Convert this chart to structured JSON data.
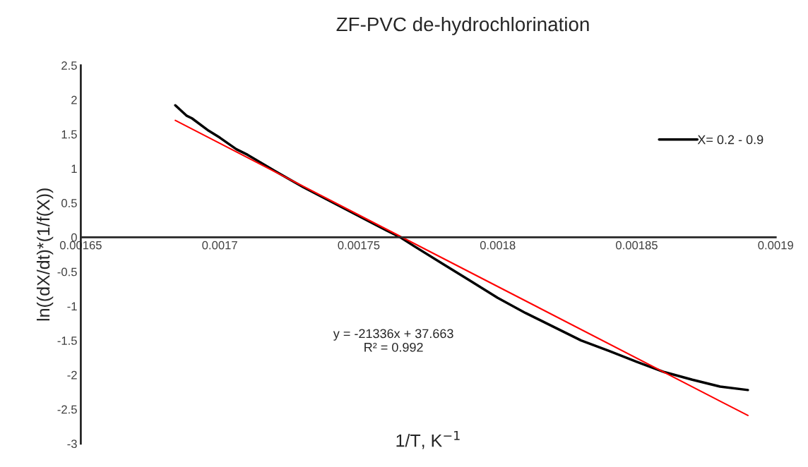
{
  "chart_data": {
    "type": "line",
    "title": "ZF-PVC de-hydrochlorination",
    "xlabel": "1/T, K$^{−1}$",
    "ylabel": "ln((dX/dt)*(1/f(X))",
    "series": [
      {
        "name": "X= 0.2 - 0.9",
        "color": "#000000",
        "x": [
          0.001684,
          0.001688,
          0.00169,
          0.001696,
          0.0017,
          0.001706,
          0.00171,
          0.00172,
          0.00173,
          0.00174,
          0.00175,
          0.00176,
          0.001765,
          0.00177,
          0.00178,
          0.00179,
          0.0018,
          0.00181,
          0.00182,
          0.00183,
          0.00184,
          0.00185,
          0.00186,
          0.00187,
          0.00188,
          0.00189
        ],
        "values": [
          1.92,
          1.77,
          1.73,
          1.55,
          1.45,
          1.28,
          1.2,
          0.96,
          0.73,
          0.52,
          0.31,
          0.1,
          0.0,
          -0.13,
          -0.38,
          -0.63,
          -0.88,
          -1.1,
          -1.3,
          -1.5,
          -1.65,
          -1.81,
          -1.96,
          -2.07,
          -2.17,
          -2.22
        ]
      },
      {
        "color": "#ff0000",
        "x": [
          0.001684,
          0.00189
        ],
        "values": [
          1.7,
          -2.59
        ]
      }
    ],
    "annotations": [
      "y = -21336x + 37.663\nR² = 0.992"
    ],
    "xlim": [
      0.00165,
      0.0019
    ],
    "xticks": [
      0.00165,
      0.0017,
      0.00175,
      0.0018,
      0.00185,
      0.0019
    ],
    "ylim": [
      -3,
      2.5
    ],
    "yticks": [
      -3,
      -2.5,
      -2,
      -1.5,
      -1,
      -0.5,
      0,
      0.5,
      1,
      1.5,
      2,
      2.5
    ],
    "grid": false,
    "legend": "top right",
    "marker": "none",
    "line_style": "solid"
  }
}
